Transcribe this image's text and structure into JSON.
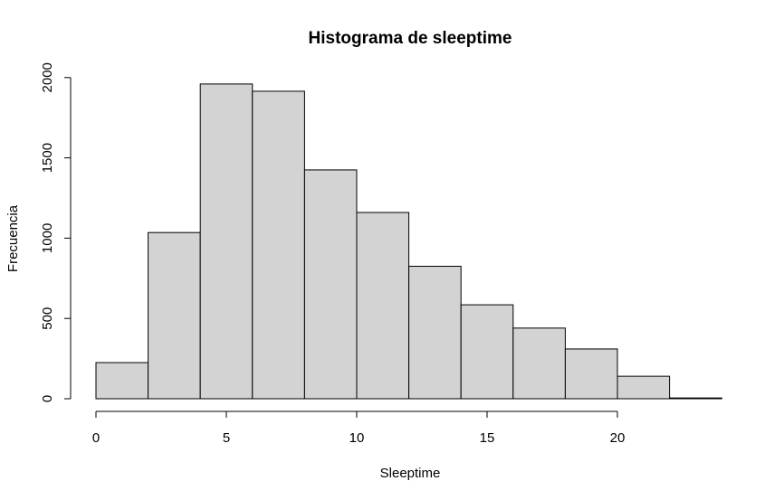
{
  "chart_data": {
    "type": "bar",
    "title": "Histograma de sleeptime",
    "xlabel": "Sleeptime",
    "ylabel": "Frecuencia",
    "bins": [
      {
        "start": 0,
        "end": 2,
        "count": 225
      },
      {
        "start": 2,
        "end": 4,
        "count": 1035
      },
      {
        "start": 4,
        "end": 6,
        "count": 1960
      },
      {
        "start": 6,
        "end": 8,
        "count": 1915
      },
      {
        "start": 8,
        "end": 10,
        "count": 1425
      },
      {
        "start": 10,
        "end": 12,
        "count": 1160
      },
      {
        "start": 12,
        "end": 14,
        "count": 825
      },
      {
        "start": 14,
        "end": 16,
        "count": 585
      },
      {
        "start": 16,
        "end": 18,
        "count": 440
      },
      {
        "start": 18,
        "end": 20,
        "count": 310
      },
      {
        "start": 20,
        "end": 22,
        "count": 140
      },
      {
        "start": 22,
        "end": 24,
        "count": 5
      }
    ],
    "xlim": [
      0,
      24
    ],
    "ylim": [
      0,
      2000
    ],
    "xticks": [
      0,
      5,
      10,
      15,
      20
    ],
    "yticks": [
      0,
      500,
      1000,
      1500,
      2000
    ],
    "grid": false,
    "bar_color": "#D3D3D3",
    "edge_color": "#000000"
  }
}
